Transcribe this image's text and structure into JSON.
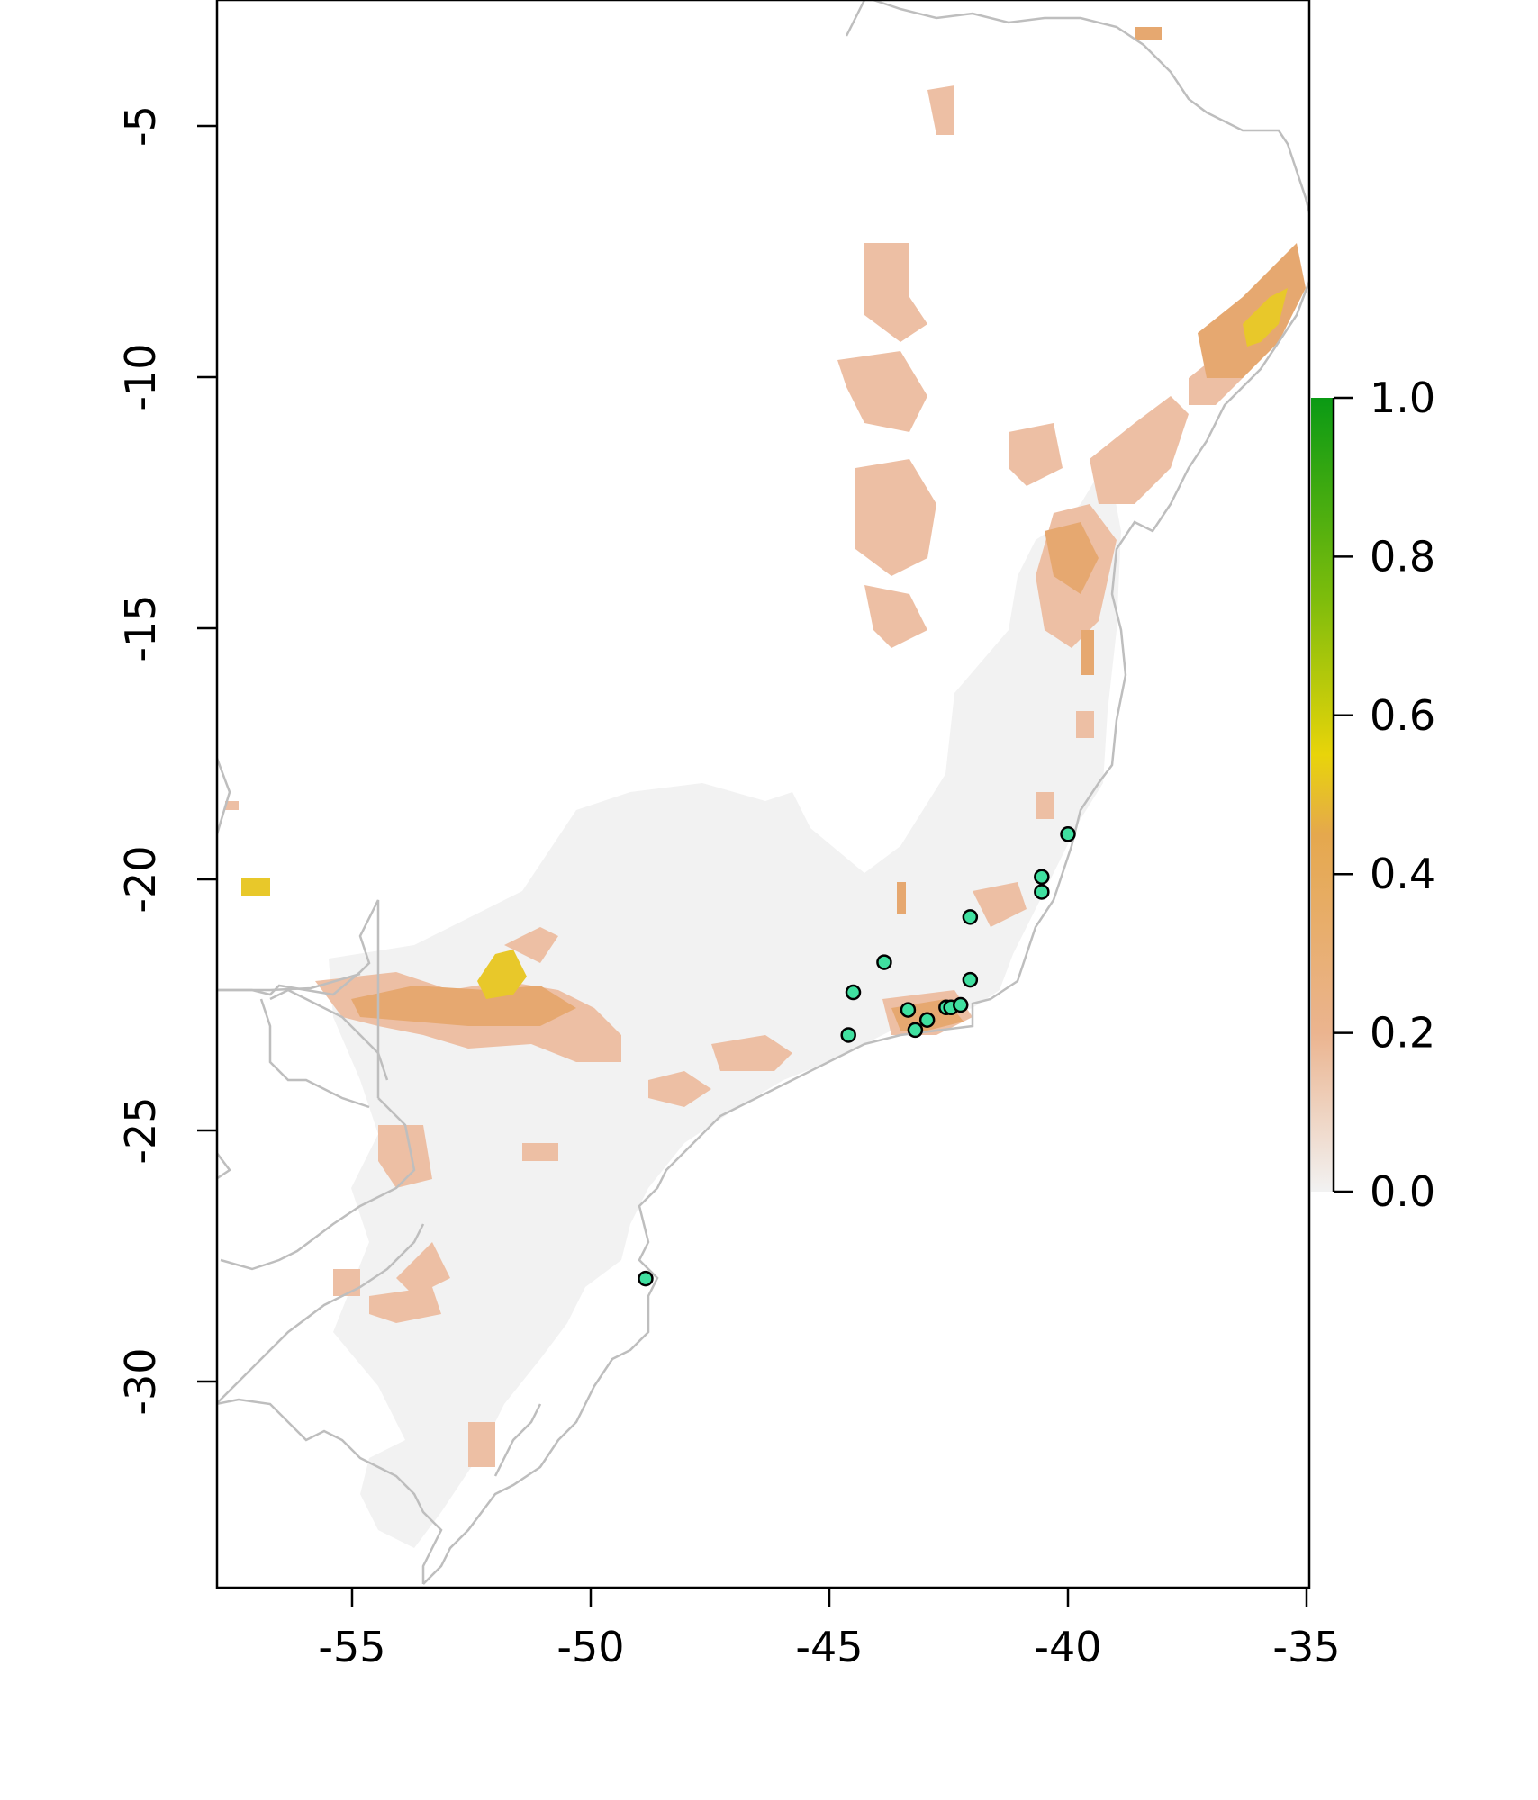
{
  "x_axis": {
    "ticks": [
      {
        "value": -55,
        "label": "-55"
      },
      {
        "value": -50,
        "label": "-50"
      },
      {
        "value": -45,
        "label": "-45"
      },
      {
        "value": -40,
        "label": "-40"
      },
      {
        "value": -35,
        "label": "-35"
      }
    ],
    "range": [
      -57.8,
      -34.9
    ]
  },
  "y_axis": {
    "ticks": [
      {
        "value": -5,
        "label": "-5"
      },
      {
        "value": -10,
        "label": "-10"
      },
      {
        "value": -15,
        "label": "-15"
      },
      {
        "value": -20,
        "label": "-20"
      },
      {
        "value": -25,
        "label": "-25"
      },
      {
        "value": -30,
        "label": "-30"
      }
    ],
    "range": [
      -34.2,
      -2.5
    ]
  },
  "legend": {
    "ticks": [
      {
        "value": 1.0,
        "label": "1.0"
      },
      {
        "value": 0.8,
        "label": "0.8"
      },
      {
        "value": 0.6,
        "label": "0.6"
      },
      {
        "value": 0.4,
        "label": "0.4"
      },
      {
        "value": 0.2,
        "label": "0.2"
      },
      {
        "value": 0.0,
        "label": "0.0"
      }
    ],
    "gradient": [
      "#f2f2f2",
      "#ebb48f",
      "#e8c21d",
      "#64b90a",
      "#0a9a14"
    ]
  },
  "colors": {
    "background_land": "#f2f2f2",
    "low_suitability": "#edbfa4",
    "mid_suitability": "#e6a870",
    "high_suitability": "#e8c82a",
    "coastline": "#bebebe",
    "occurrence_point": "#40e0a0"
  },
  "occurrences": [
    {
      "lon": -40.0,
      "lat": -19.1
    },
    {
      "lon": -40.55,
      "lat": -19.95
    },
    {
      "lon": -40.55,
      "lat": -20.25
    },
    {
      "lon": -42.05,
      "lat": -20.75
    },
    {
      "lon": -42.05,
      "lat": -22.0
    },
    {
      "lon": -43.85,
      "lat": -21.65
    },
    {
      "lon": -44.5,
      "lat": -22.25
    },
    {
      "lon": -43.35,
      "lat": -22.6
    },
    {
      "lon": -42.55,
      "lat": -22.55
    },
    {
      "lon": -42.45,
      "lat": -22.55
    },
    {
      "lon": -42.25,
      "lat": -22.5
    },
    {
      "lon": -42.95,
      "lat": -22.8
    },
    {
      "lon": -43.2,
      "lat": -23.0
    },
    {
      "lon": -44.6,
      "lat": -23.1
    },
    {
      "lon": -48.85,
      "lat": -27.95
    }
  ]
}
